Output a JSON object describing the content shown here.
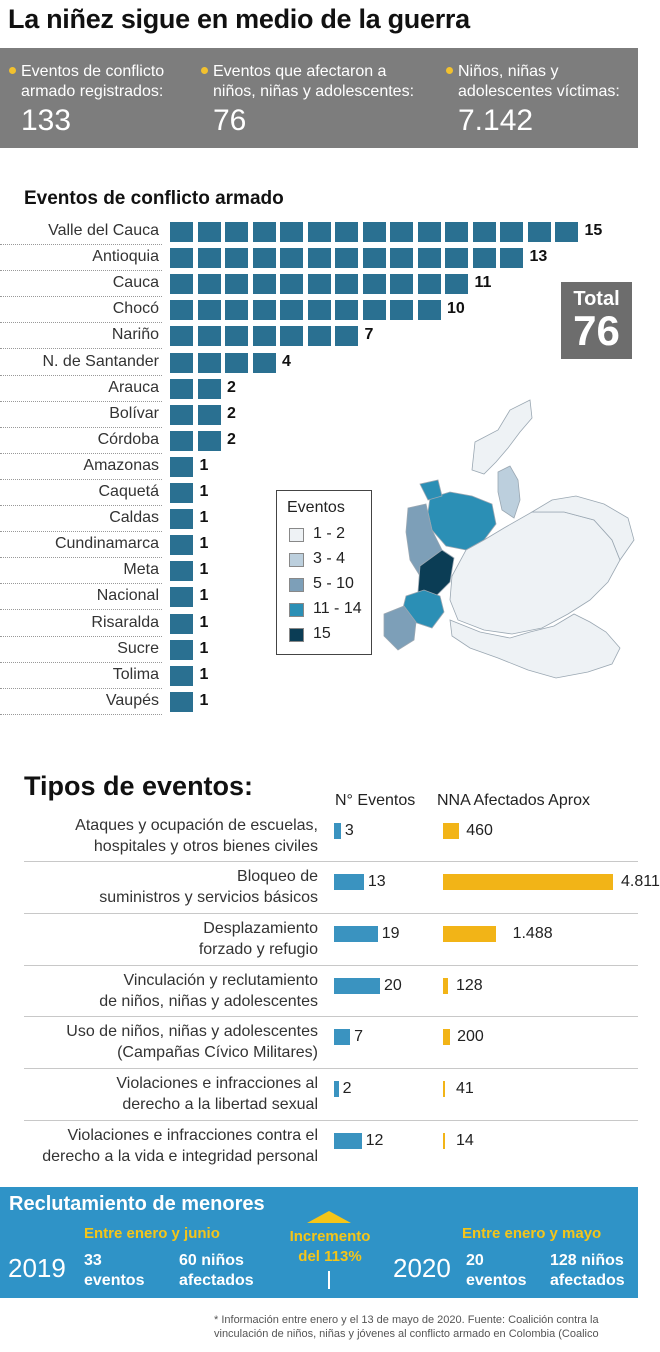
{
  "title": "La niñez sigue en medio de la guerra",
  "stats": [
    {
      "label_line1": "Eventos de conflicto",
      "label_line2": "armado registrados:",
      "value": "133"
    },
    {
      "label_line1": "Eventos que afectaron a",
      "label_line2": "niños, niñas y adolescentes:",
      "value": "76"
    },
    {
      "label_line1": "Niños, niñas y",
      "label_line2": "adolescentes víctimas:",
      "value": "7.142"
    }
  ],
  "colors": {
    "accent": "#f2c12e",
    "bar": "#2a7091",
    "events_bar": "#3a93c0",
    "nna_bar": "#f2b417",
    "panel": "#7d7d7d",
    "recl_bg": "#2f93c7"
  },
  "chart_data": [
    {
      "type": "bar",
      "title": "Eventos de conflicto armado",
      "orientation": "horizontal",
      "categories": [
        "Valle del Cauca",
        "Antioquia",
        "Cauca",
        "Chocó",
        "Nariño",
        "N. de Santander",
        "Arauca",
        "Bolívar",
        "Córdoba",
        "Amazonas",
        "Caquetá",
        "Caldas",
        "Cundinamarca",
        "Meta",
        "Nacional",
        "Risaralda",
        "Sucre",
        "Tolima",
        "Vaupés"
      ],
      "values": [
        15,
        13,
        11,
        10,
        7,
        4,
        2,
        2,
        2,
        1,
        1,
        1,
        1,
        1,
        1,
        1,
        1,
        1,
        1
      ],
      "total_label": "Total",
      "total_value": "76"
    },
    {
      "type": "bar",
      "title": "Tipos de eventos:",
      "orientation": "horizontal",
      "categories": [
        [
          "Ataques y ocupación de escuelas,",
          "hospitales y otros bienes civiles"
        ],
        [
          "Bloqueo de",
          "suministros y servicios básicos"
        ],
        [
          "Desplazamiento",
          "forzado y refugio"
        ],
        [
          "Vinculación y reclutamiento",
          "de niños, niñas y adolescentes"
        ],
        [
          "Uso de niños, niñas y adolescentes",
          "(Campañas Cívico Militares)"
        ],
        [
          "Violaciones e infracciones al",
          "derecho a la libertad sexual"
        ],
        [
          "Violaciones e infracciones contra el",
          "derecho a la vida e integridad personal"
        ]
      ],
      "series": [
        {
          "name": "N° Eventos",
          "values": [
            3,
            13,
            19,
            20,
            7,
            2,
            12
          ],
          "labels": [
            "3",
            "13",
            "19",
            "20",
            "7",
            "2",
            "12"
          ]
        },
        {
          "name": "NNA Afectados Aprox",
          "values": [
            460,
            4811,
            1488,
            128,
            200,
            41,
            14
          ],
          "labels": [
            "460",
            "4.811",
            "1.488",
            "128",
            "200",
            "41",
            "14"
          ]
        }
      ]
    }
  ],
  "map_legend": {
    "title": "Eventos",
    "items": [
      {
        "label": "1 - 2",
        "color": "#eef2f5"
      },
      {
        "label": "3 - 4",
        "color": "#bccfdd"
      },
      {
        "label": "5 - 10",
        "color": "#7d9fb8"
      },
      {
        "label": "11 - 14",
        "color": "#2b8fb5"
      },
      {
        "label": "15",
        "color": "#0b3d55"
      }
    ]
  },
  "reclutamiento": {
    "title": "Reclutamiento de menores",
    "left": {
      "period": "Entre enero y junio",
      "year": "2019",
      "events_line1": "33",
      "events_line2": "eventos",
      "kids_line1": "60 niños",
      "kids_line2": "afectados"
    },
    "increase_line1": "Incremento",
    "increase_line2": "del 113%",
    "right": {
      "period": "Entre enero y mayo",
      "year": "2020",
      "events_line1": "20",
      "events_line2": "eventos",
      "kids_line1": "128 niños",
      "kids_line2": "afectados"
    }
  },
  "footnote": "* Información entre enero y el 13 de mayo de 2020. Fuente: Coalición contra la vinculación de niños, niñas y jóvenes al conflicto armado en Colombia (Coalico"
}
